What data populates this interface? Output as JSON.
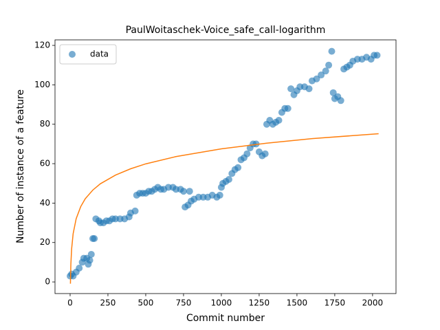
{
  "chart_data": {
    "type": "scatter",
    "title": "PaulWoitaschek-Voice_safe_call-logarithm",
    "xlabel": "Commit number",
    "ylabel": "Number of instance of a feature",
    "xlim": [
      -100,
      2155
    ],
    "ylim": [
      -5.9,
      122.8
    ],
    "xticks": [
      0,
      250,
      500,
      750,
      1000,
      1250,
      1500,
      1750,
      2000
    ],
    "yticks": [
      0,
      20,
      40,
      60,
      80,
      100,
      120
    ],
    "legend": "upper left",
    "series": [
      {
        "name": "data",
        "type": "scatter",
        "color": "#1f77b4",
        "x": [
          0,
          10,
          20,
          40,
          60,
          80,
          90,
          110,
          120,
          130,
          140,
          150,
          160,
          170,
          190,
          200,
          220,
          240,
          260,
          280,
          300,
          330,
          360,
          390,
          400,
          430,
          440,
          460,
          480,
          500,
          520,
          540,
          560,
          580,
          600,
          620,
          650,
          680,
          700,
          730,
          750,
          760,
          780,
          790,
          800,
          820,
          850,
          880,
          910,
          940,
          970,
          990,
          1000,
          1010,
          1030,
          1050,
          1070,
          1090,
          1110,
          1130,
          1150,
          1170,
          1190,
          1210,
          1230,
          1250,
          1270,
          1290,
          1300,
          1320,
          1340,
          1360,
          1380,
          1400,
          1420,
          1440,
          1460,
          1480,
          1500,
          1520,
          1550,
          1580,
          1600,
          1630,
          1660,
          1690,
          1710,
          1730,
          1740,
          1750,
          1770,
          1790,
          1810,
          1830,
          1850,
          1870,
          1900,
          1930,
          1960,
          1990,
          2010,
          2030
        ],
        "values": [
          3,
          4,
          3,
          5,
          7,
          10,
          12,
          12,
          9,
          11,
          14,
          22,
          22,
          32,
          31,
          30,
          30,
          31,
          31,
          32,
          32,
          32,
          32,
          33,
          35,
          36,
          44,
          45,
          45,
          45,
          46,
          46,
          47,
          48,
          47,
          47,
          48,
          48,
          47,
          47,
          46,
          38,
          39,
          46,
          41,
          42,
          43,
          43,
          43,
          44,
          43,
          44,
          48,
          50,
          51,
          52,
          55,
          57,
          58,
          62,
          63,
          65,
          68,
          70,
          70,
          66,
          64,
          65,
          80,
          82,
          80,
          81,
          82,
          86,
          88,
          88,
          98,
          95,
          97,
          99,
          99,
          98,
          102,
          103,
          105,
          107,
          110,
          117,
          96,
          93,
          94,
          92,
          108,
          109,
          110,
          112,
          113,
          113,
          114,
          113,
          115,
          115
        ]
      },
      {
        "type": "line",
        "color": "#ff7f0e",
        "x": [
          2,
          5,
          10,
          20,
          40,
          70,
          100,
          150,
          200,
          300,
          400,
          500,
          700,
          1000,
          1300,
          1600,
          2040
        ],
        "values": [
          -0.9,
          9.2,
          16.8,
          24.5,
          32.1,
          38.2,
          42.2,
          46.6,
          49.8,
          54.2,
          57.4,
          59.9,
          63.6,
          67.5,
          70.4,
          72.7,
          75.2
        ]
      }
    ]
  }
}
